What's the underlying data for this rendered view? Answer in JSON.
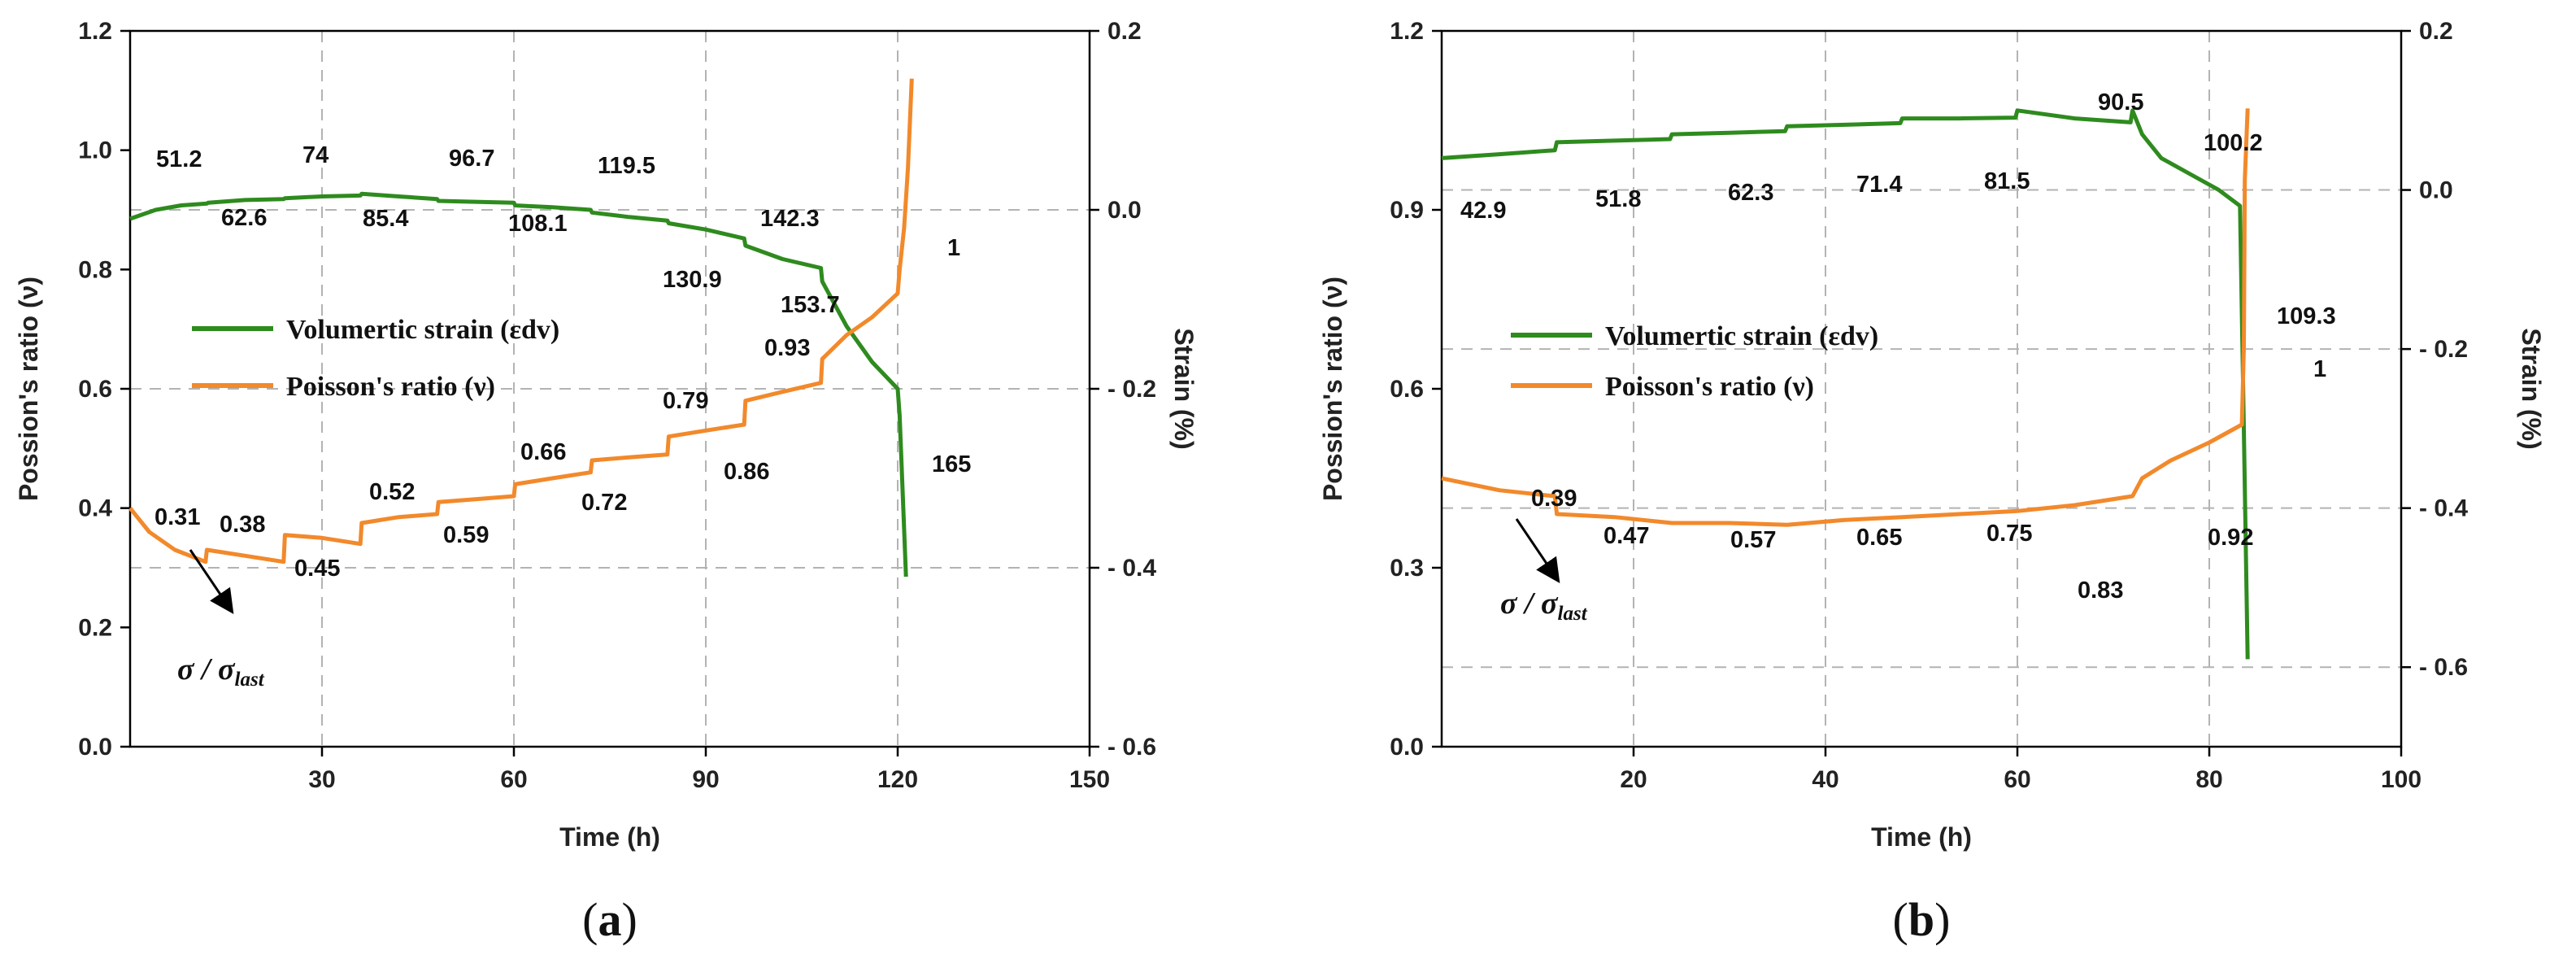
{
  "colors": {
    "volumetric": "#2e8b1e",
    "poisson": "#f2892b",
    "grid": "#b3b3b3"
  },
  "chart_data": [
    {
      "type": "line",
      "panel_label": "a",
      "xlabel": "Time (h)",
      "ylabel": "Possion's ratio (ν)",
      "y2label": "Strain (%)",
      "xlim": [
        0,
        150
      ],
      "ylim": [
        0,
        1.2
      ],
      "y2lim": [
        -0.6,
        0.2
      ],
      "xticks": [
        30,
        60,
        90,
        120,
        150
      ],
      "yticks": [
        0.0,
        0.2,
        0.4,
        0.6,
        0.8,
        1.0,
        1.2
      ],
      "y2ticks": [
        -0.6,
        -0.4,
        -0.2,
        0.0,
        0.2
      ],
      "legend": [
        "Volumertic strain (εdv)",
        "Poisson's ratio (ν)"
      ],
      "series": [
        {
          "name": "Volumertic strain (εdv)",
          "axis": "right",
          "x": [
            0,
            4,
            8,
            12,
            12.2,
            18,
            24,
            24.2,
            30,
            36,
            36.2,
            42,
            48,
            48.2,
            54,
            60,
            60.2,
            66,
            72,
            72.2,
            78,
            84,
            84.2,
            90,
            96,
            96.2,
            102,
            108,
            108.2,
            112,
            116,
            120,
            120.3,
            120.8,
            121.3
          ],
          "y": [
            -0.01,
            0.0,
            0.005,
            0.007,
            0.008,
            0.011,
            0.012,
            0.013,
            0.015,
            0.016,
            0.018,
            0.015,
            0.012,
            0.01,
            0.009,
            0.008,
            0.005,
            0.003,
            0.0,
            -0.003,
            -0.008,
            -0.012,
            -0.015,
            -0.022,
            -0.032,
            -0.04,
            -0.055,
            -0.065,
            -0.08,
            -0.13,
            -0.17,
            -0.2,
            -0.23,
            -0.32,
            -0.41
          ]
        },
        {
          "name": "Poisson's ratio (ν)",
          "axis": "left",
          "x": [
            0,
            3,
            7,
            11.8,
            12,
            18,
            24,
            24.2,
            30,
            36,
            36.2,
            42,
            48,
            48.2,
            54,
            60,
            60.2,
            66,
            72,
            72.2,
            78,
            84,
            84.2,
            90,
            96,
            96.2,
            102,
            108,
            108.2,
            112,
            116,
            120,
            120.3,
            121,
            121.6,
            122.2
          ],
          "y": [
            0.4,
            0.36,
            0.33,
            0.31,
            0.33,
            0.32,
            0.31,
            0.355,
            0.35,
            0.34,
            0.375,
            0.385,
            0.39,
            0.41,
            0.415,
            0.42,
            0.44,
            0.45,
            0.46,
            0.48,
            0.485,
            0.49,
            0.52,
            0.53,
            0.54,
            0.58,
            0.595,
            0.61,
            0.65,
            0.69,
            0.72,
            0.76,
            0.8,
            0.87,
            0.97,
            1.12
          ]
        }
      ],
      "annotations": {
        "stress_labels": [
          "51.2",
          "74",
          "96.7",
          "119.5",
          "62.6",
          "85.4",
          "108.1",
          "142.3",
          "130.9",
          "153.7",
          "165"
        ],
        "ratio_labels": [
          "0.31",
          "0.38",
          "0.52",
          "0.66",
          "0.79",
          "0.93",
          "1",
          "0.45",
          "0.59",
          "0.72",
          "0.86"
        ],
        "sigma_main": "σ / σ",
        "sigma_sub": "last"
      }
    },
    {
      "type": "line",
      "panel_label": "b",
      "xlabel": "Time (h)",
      "ylabel": "Possion's ratio (ν)",
      "y2label": "Strain (%)",
      "xlim": [
        0,
        100
      ],
      "ylim": [
        0,
        1.2
      ],
      "y2lim": [
        -0.7,
        0.2
      ],
      "xticks": [
        20,
        40,
        60,
        80,
        100
      ],
      "yticks": [
        0.0,
        0.3,
        0.6,
        0.9,
        1.2
      ],
      "y2ticks": [
        -0.6,
        -0.4,
        -0.2,
        0.0,
        0.2
      ],
      "legend": [
        "Volumertic strain (εdv)",
        "Poisson's ratio (ν)"
      ],
      "series": [
        {
          "name": "Volumertic strain (εdv)",
          "axis": "right",
          "x": [
            0,
            6,
            11.8,
            12,
            18,
            23.8,
            24,
            30,
            35.8,
            36,
            42,
            47.8,
            48,
            54,
            59.8,
            60,
            66,
            71.8,
            72,
            73,
            75,
            78,
            81,
            83.2,
            83.6,
            84.0
          ],
          "y": [
            0.04,
            0.045,
            0.05,
            0.06,
            0.062,
            0.064,
            0.07,
            0.072,
            0.074,
            0.08,
            0.082,
            0.084,
            0.09,
            0.09,
            0.091,
            0.1,
            0.09,
            0.085,
            0.1,
            0.07,
            0.04,
            0.02,
            0.0,
            -0.02,
            -0.3,
            -0.59
          ]
        },
        {
          "name": "Poisson's ratio (ν)",
          "axis": "left",
          "x": [
            0,
            6,
            11.8,
            12,
            18,
            24,
            30,
            36,
            42,
            48,
            54,
            60,
            66,
            72,
            73,
            76,
            80,
            83.4,
            83.6,
            83.7,
            84.0
          ],
          "y": [
            0.45,
            0.43,
            0.42,
            0.39,
            0.385,
            0.375,
            0.375,
            0.372,
            0.38,
            0.385,
            0.39,
            0.395,
            0.405,
            0.42,
            0.45,
            0.48,
            0.51,
            0.54,
            0.67,
            0.95,
            1.07
          ]
        }
      ],
      "annotations": {
        "stress_labels": [
          "42.9",
          "51.8",
          "62.3",
          "71.4",
          "81.5",
          "90.5",
          "100.2",
          "109.3"
        ],
        "ratio_labels": [
          "0.39",
          "0.47",
          "0.57",
          "0.65",
          "0.75",
          "0.83",
          "0.92",
          "1"
        ],
        "sigma_main": "σ / σ",
        "sigma_sub": "last"
      }
    }
  ]
}
